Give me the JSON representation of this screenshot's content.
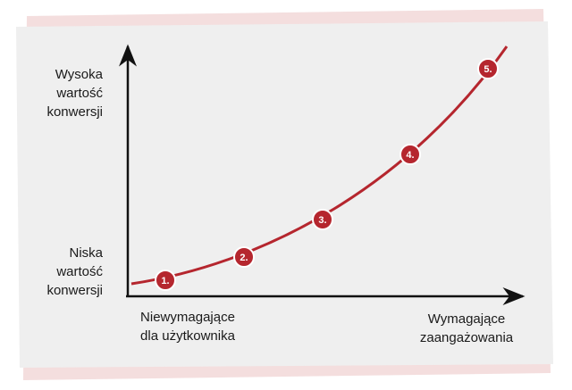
{
  "y_axis": {
    "top_label": [
      "Wysoka",
      "wartość",
      "konwersji"
    ],
    "bottom_label": [
      "Niska",
      "wartość",
      "konwersji"
    ]
  },
  "x_axis": {
    "left_label": [
      "Niewymagające",
      "dla użytkownika"
    ],
    "right_label": [
      "Wymagające",
      "zaangażowania"
    ]
  },
  "points": [
    {
      "label": "1."
    },
    {
      "label": "2."
    },
    {
      "label": "3."
    },
    {
      "label": "4."
    },
    {
      "label": "5."
    }
  ]
}
